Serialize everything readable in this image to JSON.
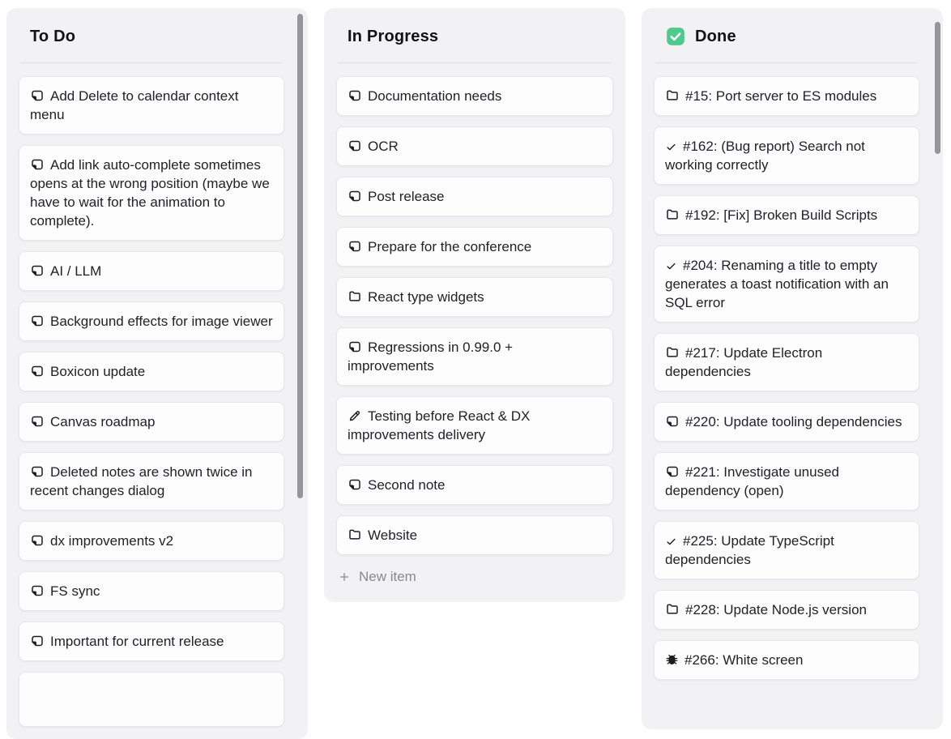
{
  "board": {
    "columns": [
      {
        "id": "todo",
        "title": "To Do",
        "header_icon": null,
        "has_scrollbar": true,
        "footer_action": null,
        "cards": [
          {
            "icon": "note",
            "text": "Add Delete to calendar context menu"
          },
          {
            "icon": "note",
            "text": "Add link auto-complete sometimes opens at the wrong position (maybe we have to wait for the animation to complete)."
          },
          {
            "icon": "note",
            "text": "AI / LLM"
          },
          {
            "icon": "note",
            "text": "Background effects for image viewer"
          },
          {
            "icon": "note",
            "text": "Boxicon update"
          },
          {
            "icon": "note",
            "text": "Canvas roadmap"
          },
          {
            "icon": "note",
            "text": "Deleted notes are shown twice in recent changes dialog"
          },
          {
            "icon": "note",
            "text": "dx improvements v2"
          },
          {
            "icon": "note",
            "text": "FS sync"
          },
          {
            "icon": "note",
            "text": "Important for current release"
          },
          {
            "icon": null,
            "text": ""
          }
        ]
      },
      {
        "id": "in-progress",
        "title": "In Progress",
        "header_icon": null,
        "has_scrollbar": false,
        "footer_action": {
          "icon": "plus",
          "label": "New item"
        },
        "cards": [
          {
            "icon": "note",
            "text": "Documentation needs"
          },
          {
            "icon": "note",
            "text": "OCR"
          },
          {
            "icon": "note",
            "text": "Post release"
          },
          {
            "icon": "note",
            "text": "Prepare for the conference"
          },
          {
            "icon": "folder",
            "text": "React type widgets"
          },
          {
            "icon": "note",
            "text": "Regressions in 0.99.0 + improvements"
          },
          {
            "icon": "pencil",
            "text": "Testing before React & DX improvements delivery"
          },
          {
            "icon": "note",
            "text": "Second note"
          },
          {
            "icon": "folder",
            "text": "Website"
          }
        ]
      },
      {
        "id": "done",
        "title": "Done",
        "header_icon": "done-checkbox",
        "has_scrollbar": true,
        "footer_action": null,
        "cards": [
          {
            "icon": "folder",
            "text": "#15: Port server to ES modules"
          },
          {
            "icon": "check",
            "text": "#162: (Bug report) Search not working correctly"
          },
          {
            "icon": "folder",
            "text": "#192: [Fix] Broken Build Scripts"
          },
          {
            "icon": "check",
            "text": "#204: Renaming a title to empty generates a toast notification with an SQL error"
          },
          {
            "icon": "folder",
            "text": "#217: Update Electron dependencies"
          },
          {
            "icon": "note",
            "text": "#220: Update tooling dependencies"
          },
          {
            "icon": "note",
            "text": "#221: Investigate unused dependency (open)"
          },
          {
            "icon": "check",
            "text": "#225: Update TypeScript dependencies"
          },
          {
            "icon": "folder",
            "text": "#228: Update Node.js version"
          },
          {
            "icon": "bug",
            "text": "#266: White screen"
          }
        ]
      }
    ]
  },
  "colors": {
    "done_check_green": "#4FC98D"
  }
}
